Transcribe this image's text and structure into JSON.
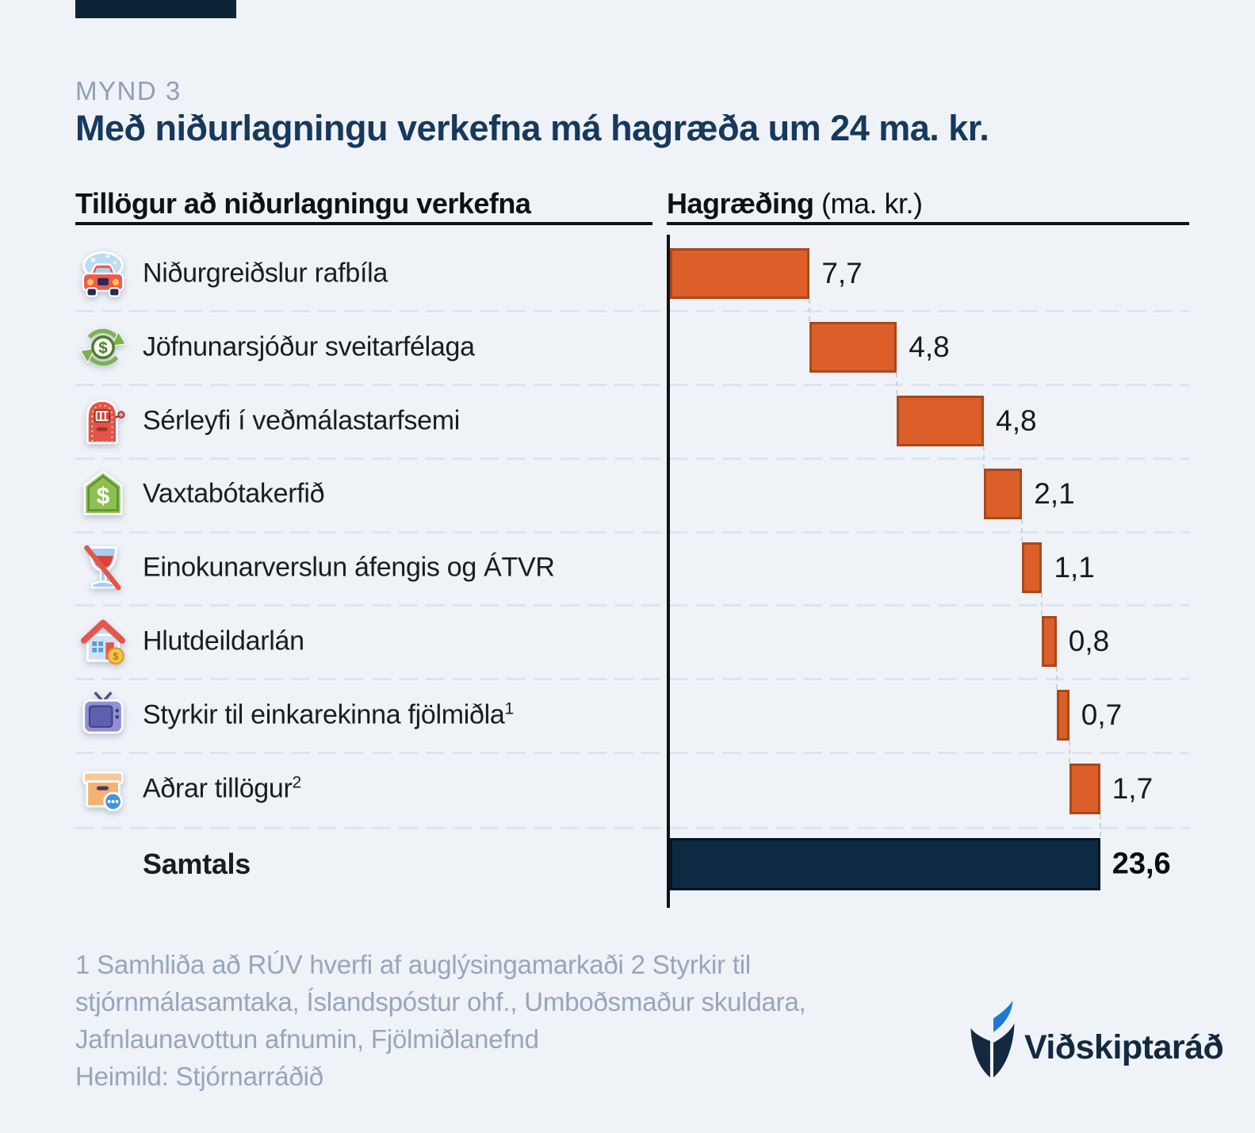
{
  "figure": {
    "kicker": "MYND 3",
    "title": "Með niðurlagningu verkefna má hagræða um 24 ma. kr."
  },
  "table_header": {
    "left": "Tillögur að niðurlagningu verkefna",
    "right_bold": "Hagræðing",
    "right_unit": " (ma. kr.)"
  },
  "chart_data": {
    "type": "bar",
    "subtype": "horizontal-waterfall",
    "categories": [
      "Niðurgreiðslur rafbíla",
      "Jöfnunarsjóður sveitarfélaga",
      "Sérleyfi í veðmálastarfsemi",
      "Vaxtabótakerfið",
      "Einokunarverslun áfengis og ÁTVR",
      "Hlutdeildarlán",
      "Styrkir til einkarekinna fjölmiðla",
      "Aðrar tillögur"
    ],
    "superscripts": [
      "",
      "",
      "",
      "",
      "",
      "",
      "1",
      "2"
    ],
    "icons": [
      "car-wash-icon",
      "currency-exchange-icon",
      "slot-machine-icon",
      "dollar-shield-icon",
      "no-alcohol-icon",
      "house-coin-icon",
      "tv-icon",
      "box-more-icon"
    ],
    "values": [
      7.7,
      4.8,
      4.8,
      2.1,
      1.1,
      0.8,
      0.7,
      1.7
    ],
    "value_labels": [
      "7,7",
      "4,8",
      "4,8",
      "2,1",
      "1,1",
      "0,8",
      "0,7",
      "1,7"
    ],
    "total": {
      "label": "Samtals",
      "value": 23.6,
      "value_label": "23,6"
    },
    "xlim": [
      0,
      23.7
    ],
    "grid": "dashed-row-separators",
    "legend": "none",
    "bar_color": "#dc5e28",
    "bar_border_color": "#a8481d",
    "total_bar_color": "#0e2a42",
    "accent_navy": "#0d2436",
    "background": "#eff2f7"
  },
  "footnotes": {
    "lines": [
      "1 Samhliða að RÚV hverfi af auglýsingamarkaði 2 Styrkir til",
      "stjórnmálasamtaka, Íslandspóstur ohf., Umboðsmaður skuldara,",
      "Jafnlaunavottun afnumin, Fjölmiðlanefnd",
      "Heimild: Stjórnarráðið"
    ]
  },
  "logo": {
    "text": "Viðskiptaráð",
    "blue": "#1e79d2",
    "navy": "#13293f"
  }
}
